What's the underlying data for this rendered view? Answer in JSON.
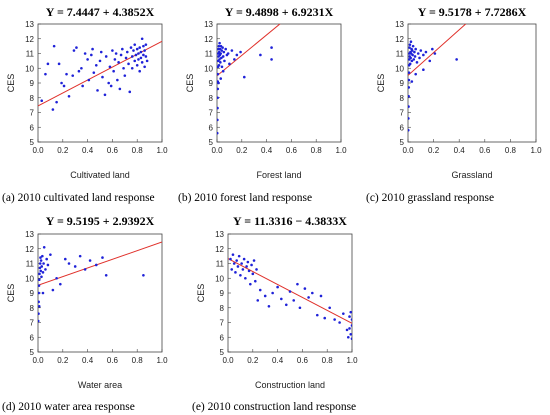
{
  "colors": {
    "point": "#1f22d8",
    "fit_line": "#e0302a",
    "axis": "#444444"
  },
  "chart_data": [
    {
      "type": "scatter",
      "panel": "a",
      "title": "Y = 7.4447 + 4.3852X",
      "xlabel": "Cultivated land",
      "ylabel": "CES",
      "caption": "(a) 2010 cultivated land response",
      "xlim": [
        0,
        1.0
      ],
      "ylim": [
        5,
        13
      ],
      "xticks": [
        "0.0",
        "0.2",
        "0.4",
        "0.6",
        "0.8",
        "1.0"
      ],
      "yticks": [
        "5",
        "6",
        "7",
        "8",
        "9",
        "10",
        "11",
        "12",
        "13"
      ],
      "fit": {
        "intercept": 7.4447,
        "slope": 4.3852
      },
      "points": [
        [
          0.03,
          7.8
        ],
        [
          0.06,
          9.6
        ],
        [
          0.08,
          10.3
        ],
        [
          0.12,
          7.2
        ],
        [
          0.13,
          11.5
        ],
        [
          0.15,
          7.7
        ],
        [
          0.17,
          10.3
        ],
        [
          0.19,
          9.0
        ],
        [
          0.21,
          8.8
        ],
        [
          0.23,
          9.6
        ],
        [
          0.25,
          8.1
        ],
        [
          0.28,
          9.5
        ],
        [
          0.29,
          11.2
        ],
        [
          0.31,
          11.4
        ],
        [
          0.33,
          9.8
        ],
        [
          0.35,
          10.0
        ],
        [
          0.36,
          8.8
        ],
        [
          0.38,
          11.0
        ],
        [
          0.4,
          10.6
        ],
        [
          0.41,
          9.2
        ],
        [
          0.43,
          10.9
        ],
        [
          0.44,
          11.3
        ],
        [
          0.45,
          9.7
        ],
        [
          0.47,
          10.2
        ],
        [
          0.48,
          8.5
        ],
        [
          0.5,
          10.5
        ],
        [
          0.51,
          11.1
        ],
        [
          0.52,
          9.4
        ],
        [
          0.54,
          8.2
        ],
        [
          0.55,
          10.8
        ],
        [
          0.57,
          9.0
        ],
        [
          0.58,
          10.1
        ],
        [
          0.59,
          8.8
        ],
        [
          0.6,
          11.2
        ],
        [
          0.61,
          9.8
        ],
        [
          0.62,
          10.6
        ],
        [
          0.63,
          11.0
        ],
        [
          0.64,
          9.2
        ],
        [
          0.65,
          10.4
        ],
        [
          0.66,
          8.6
        ],
        [
          0.67,
          10.9
        ],
        [
          0.68,
          11.3
        ],
        [
          0.69,
          10.0
        ],
        [
          0.7,
          9.5
        ],
        [
          0.71,
          10.7
        ],
        [
          0.72,
          11.1
        ],
        [
          0.73,
          10.3
        ],
        [
          0.74,
          8.4
        ],
        [
          0.75,
          11.4
        ],
        [
          0.76,
          10.8
        ],
        [
          0.76,
          10.0
        ],
        [
          0.77,
          11.2
        ],
        [
          0.78,
          10.5
        ],
        [
          0.78,
          11.6
        ],
        [
          0.79,
          10.9
        ],
        [
          0.8,
          11.3
        ],
        [
          0.8,
          10.2
        ],
        [
          0.81,
          11.0
        ],
        [
          0.81,
          10.6
        ],
        [
          0.82,
          11.4
        ],
        [
          0.82,
          9.8
        ],
        [
          0.83,
          10.7
        ],
        [
          0.83,
          11.1
        ],
        [
          0.84,
          10.4
        ],
        [
          0.84,
          12.0
        ],
        [
          0.85,
          10.9
        ],
        [
          0.85,
          11.5
        ],
        [
          0.86,
          10.1
        ],
        [
          0.86,
          11.2
        ],
        [
          0.87,
          10.8
        ],
        [
          0.87,
          11.6
        ],
        [
          0.88,
          10.5
        ]
      ]
    },
    {
      "type": "scatter",
      "panel": "b",
      "title": "Y = 9.4898 + 6.9231X",
      "xlabel": "Forest land",
      "ylabel": "CES",
      "caption": "(b) 2010 forest land response",
      "xlim": [
        0,
        1.0
      ],
      "ylim": [
        5,
        13
      ],
      "xticks": [
        "0.0",
        "0.2",
        "0.4",
        "0.6",
        "0.8",
        "1.0"
      ],
      "yticks": [
        "5",
        "6",
        "7",
        "8",
        "9",
        "10",
        "11",
        "12",
        "13"
      ],
      "fit": {
        "intercept": 9.4898,
        "slope": 6.9231
      },
      "points": [
        [
          0.002,
          5.6
        ],
        [
          0.003,
          6.5
        ],
        [
          0.004,
          7.3
        ],
        [
          0.005,
          8.0
        ],
        [
          0.006,
          8.6
        ],
        [
          0.006,
          9.1
        ],
        [
          0.007,
          9.6
        ],
        [
          0.008,
          10.1
        ],
        [
          0.01,
          10.5
        ],
        [
          0.01,
          11.0
        ],
        [
          0.012,
          11.3
        ],
        [
          0.013,
          10.8
        ],
        [
          0.015,
          11.5
        ],
        [
          0.016,
          10.2
        ],
        [
          0.018,
          11.1
        ],
        [
          0.02,
          10.6
        ],
        [
          0.021,
          11.7
        ],
        [
          0.023,
          10.9
        ],
        [
          0.025,
          11.3
        ],
        [
          0.027,
          10.4
        ],
        [
          0.03,
          11.0
        ],
        [
          0.032,
          11.5
        ],
        [
          0.035,
          10.7
        ],
        [
          0.038,
          11.2
        ],
        [
          0.04,
          10.1
        ],
        [
          0.045,
          11.4
        ],
        [
          0.05,
          10.8
        ],
        [
          0.055,
          11.1
        ],
        [
          0.06,
          10.5
        ],
        [
          0.07,
          11.3
        ],
        [
          0.08,
          10.9
        ],
        [
          0.09,
          11.0
        ],
        [
          0.1,
          10.3
        ],
        [
          0.12,
          11.2
        ],
        [
          0.14,
          10.6
        ],
        [
          0.16,
          10.9
        ],
        [
          0.19,
          11.1
        ],
        [
          0.22,
          9.4
        ],
        [
          0.35,
          10.9
        ],
        [
          0.44,
          11.4
        ],
        [
          0.44,
          10.6
        ],
        [
          0.05,
          9.8
        ],
        [
          0.03,
          9.3
        ],
        [
          0.012,
          9.0
        ]
      ]
    },
    {
      "type": "scatter",
      "panel": "c",
      "title": "Y = 9.5178 + 7.7286X",
      "xlabel": "Grassland",
      "ylabel": "CES",
      "caption": "(c) 2010 grassland response",
      "xlim": [
        0,
        1.0
      ],
      "ylim": [
        5,
        13
      ],
      "xticks": [
        "0.0",
        "0.2",
        "0.4",
        "0.6",
        "0.8",
        "1.0"
      ],
      "yticks": [
        "5",
        "6",
        "7",
        "8",
        "9",
        "10",
        "11",
        "12",
        "13"
      ],
      "fit": {
        "intercept": 9.5178,
        "slope": 7.7286
      },
      "points": [
        [
          0.002,
          5.8
        ],
        [
          0.003,
          6.6
        ],
        [
          0.004,
          7.4
        ],
        [
          0.005,
          8.1
        ],
        [
          0.006,
          8.7
        ],
        [
          0.007,
          9.2
        ],
        [
          0.008,
          9.7
        ],
        [
          0.009,
          10.2
        ],
        [
          0.01,
          10.6
        ],
        [
          0.011,
          11.0
        ],
        [
          0.012,
          11.4
        ],
        [
          0.013,
          10.8
        ],
        [
          0.015,
          11.6
        ],
        [
          0.017,
          10.3
        ],
        [
          0.019,
          11.1
        ],
        [
          0.021,
          10.7
        ],
        [
          0.023,
          11.8
        ],
        [
          0.025,
          11.0
        ],
        [
          0.028,
          11.3
        ],
        [
          0.03,
          10.5
        ],
        [
          0.033,
          11.2
        ],
        [
          0.036,
          10.9
        ],
        [
          0.04,
          11.5
        ],
        [
          0.045,
          10.6
        ],
        [
          0.05,
          11.1
        ],
        [
          0.055,
          10.8
        ],
        [
          0.06,
          11.3
        ],
        [
          0.07,
          10.4
        ],
        [
          0.08,
          11.0
        ],
        [
          0.09,
          10.7
        ],
        [
          0.1,
          11.2
        ],
        [
          0.12,
          10.9
        ],
        [
          0.14,
          11.1
        ],
        [
          0.17,
          10.5
        ],
        [
          0.19,
          11.3
        ],
        [
          0.21,
          11.0
        ],
        [
          0.38,
          10.6
        ],
        [
          0.06,
          9.6
        ],
        [
          0.03,
          9.1
        ],
        [
          0.12,
          9.9
        ]
      ]
    },
    {
      "type": "scatter",
      "panel": "d",
      "title": "Y = 9.5195 + 2.9392X",
      "xlabel": "Water area",
      "ylabel": "CES",
      "caption": "(d) 2010 water area response",
      "xlim": [
        0,
        1.0
      ],
      "ylim": [
        5,
        13
      ],
      "xticks": [
        "0.0",
        "0.2",
        "0.4",
        "0.6",
        "0.8",
        "1.0"
      ],
      "yticks": [
        "5",
        "6",
        "7",
        "8",
        "9",
        "10",
        "11",
        "12",
        "13"
      ],
      "fit": {
        "intercept": 9.5195,
        "slope": 2.9392
      },
      "points": [
        [
          0.002,
          7.1
        ],
        [
          0.004,
          7.6
        ],
        [
          0.005,
          8.4
        ],
        [
          0.006,
          9.0
        ],
        [
          0.008,
          9.5
        ],
        [
          0.01,
          9.9
        ],
        [
          0.012,
          10.3
        ],
        [
          0.015,
          10.7
        ],
        [
          0.018,
          11.0
        ],
        [
          0.02,
          11.4
        ],
        [
          0.022,
          10.5
        ],
        [
          0.025,
          11.2
        ],
        [
          0.028,
          10.1
        ],
        [
          0.03,
          10.8
        ],
        [
          0.035,
          11.5
        ],
        [
          0.04,
          10.4
        ],
        [
          0.045,
          11.0
        ],
        [
          0.05,
          12.1
        ],
        [
          0.06,
          10.6
        ],
        [
          0.07,
          11.3
        ],
        [
          0.08,
          10.9
        ],
        [
          0.1,
          11.6
        ],
        [
          0.12,
          9.2
        ],
        [
          0.15,
          10.0
        ],
        [
          0.18,
          9.6
        ],
        [
          0.22,
          11.3
        ],
        [
          0.25,
          11.0
        ],
        [
          0.3,
          10.8
        ],
        [
          0.34,
          11.5
        ],
        [
          0.38,
          10.6
        ],
        [
          0.42,
          11.2
        ],
        [
          0.47,
          10.9
        ],
        [
          0.52,
          11.4
        ],
        [
          0.55,
          10.2
        ],
        [
          0.85,
          10.2
        ],
        [
          0.04,
          9.0
        ],
        [
          0.01,
          8.1
        ]
      ]
    },
    {
      "type": "scatter",
      "panel": "e",
      "title": "Y = 11.3316 − 4.3833X",
      "xlabel": "Construction land",
      "ylabel": "CES",
      "caption": "(e) 2010 construction land response",
      "xlim": [
        0,
        1.0
      ],
      "ylim": [
        5,
        13
      ],
      "xticks": [
        "0.0",
        "0.2",
        "0.4",
        "0.6",
        "0.8",
        "1.0"
      ],
      "yticks": [
        "5",
        "6",
        "7",
        "8",
        "9",
        "10",
        "11",
        "12",
        "13"
      ],
      "fit": {
        "intercept": 11.3316,
        "slope": -4.3833
      },
      "points": [
        [
          0.02,
          11.3
        ],
        [
          0.03,
          10.6
        ],
        [
          0.04,
          11.6
        ],
        [
          0.05,
          11.0
        ],
        [
          0.06,
          10.4
        ],
        [
          0.07,
          11.2
        ],
        [
          0.08,
          10.8
        ],
        [
          0.09,
          11.5
        ],
        [
          0.1,
          10.2
        ],
        [
          0.11,
          11.0
        ],
        [
          0.12,
          10.6
        ],
        [
          0.13,
          11.3
        ],
        [
          0.14,
          10.0
        ],
        [
          0.15,
          10.8
        ],
        [
          0.16,
          11.1
        ],
        [
          0.17,
          10.5
        ],
        [
          0.18,
          9.6
        ],
        [
          0.19,
          10.9
        ],
        [
          0.2,
          10.3
        ],
        [
          0.21,
          11.2
        ],
        [
          0.22,
          9.8
        ],
        [
          0.23,
          10.6
        ],
        [
          0.24,
          8.5
        ],
        [
          0.26,
          9.2
        ],
        [
          0.3,
          8.8
        ],
        [
          0.33,
          8.1
        ],
        [
          0.36,
          9.0
        ],
        [
          0.4,
          9.4
        ],
        [
          0.43,
          8.6
        ],
        [
          0.47,
          8.2
        ],
        [
          0.5,
          9.1
        ],
        [
          0.53,
          8.5
        ],
        [
          0.56,
          9.6
        ],
        [
          0.58,
          8.0
        ],
        [
          0.62,
          9.3
        ],
        [
          0.65,
          8.7
        ],
        [
          0.68,
          9.0
        ],
        [
          0.72,
          7.5
        ],
        [
          0.75,
          8.8
        ],
        [
          0.78,
          7.3
        ],
        [
          0.82,
          8.0
        ],
        [
          0.86,
          7.2
        ],
        [
          0.9,
          7.0
        ],
        [
          0.93,
          7.6
        ],
        [
          0.96,
          6.5
        ],
        [
          0.98,
          7.4
        ],
        [
          0.99,
          6.2
        ],
        [
          1.0,
          5.9
        ],
        [
          1.0,
          6.8
        ],
        [
          0.99,
          7.7
        ],
        [
          0.97,
          6.0
        ],
        [
          1.0,
          7.2
        ],
        [
          0.98,
          6.6
        ]
      ]
    }
  ]
}
